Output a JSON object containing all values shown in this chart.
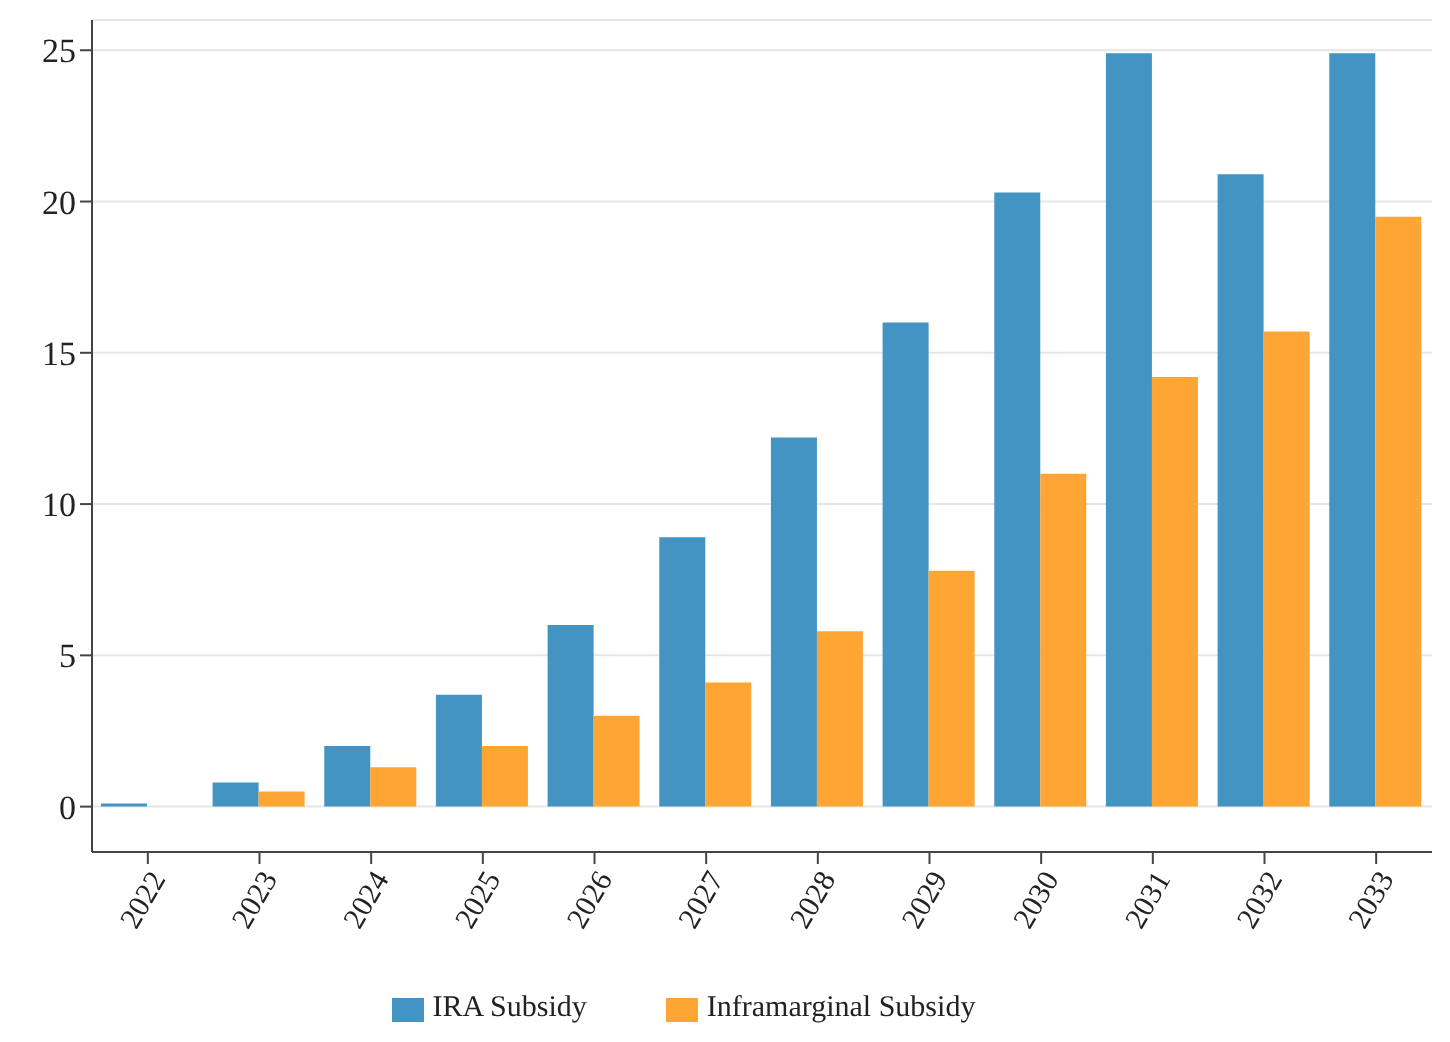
{
  "chart_data": {
    "type": "bar",
    "categories": [
      "2022",
      "2023",
      "2024",
      "2025",
      "2026",
      "2027",
      "2028",
      "2029",
      "2030",
      "2031",
      "2032",
      "2033"
    ],
    "series": [
      {
        "name": "IRA Subsidy",
        "color": "#4393c3",
        "values": [
          0.1,
          0.8,
          2.0,
          3.7,
          6.0,
          8.9,
          12.2,
          16.0,
          20.3,
          24.9,
          20.9,
          24.9
        ]
      },
      {
        "name": "Inframarginal Subsidy",
        "color": "#ffa533",
        "values": [
          0,
          0.5,
          1.3,
          2.0,
          3.0,
          4.1,
          5.8,
          7.8,
          11.0,
          14.2,
          15.7,
          19.5
        ]
      }
    ],
    "ylim": [
      -1.5,
      26
    ],
    "yticks": [
      0,
      5,
      10,
      15,
      20,
      25
    ],
    "grid": "y",
    "legend": "bottom"
  }
}
